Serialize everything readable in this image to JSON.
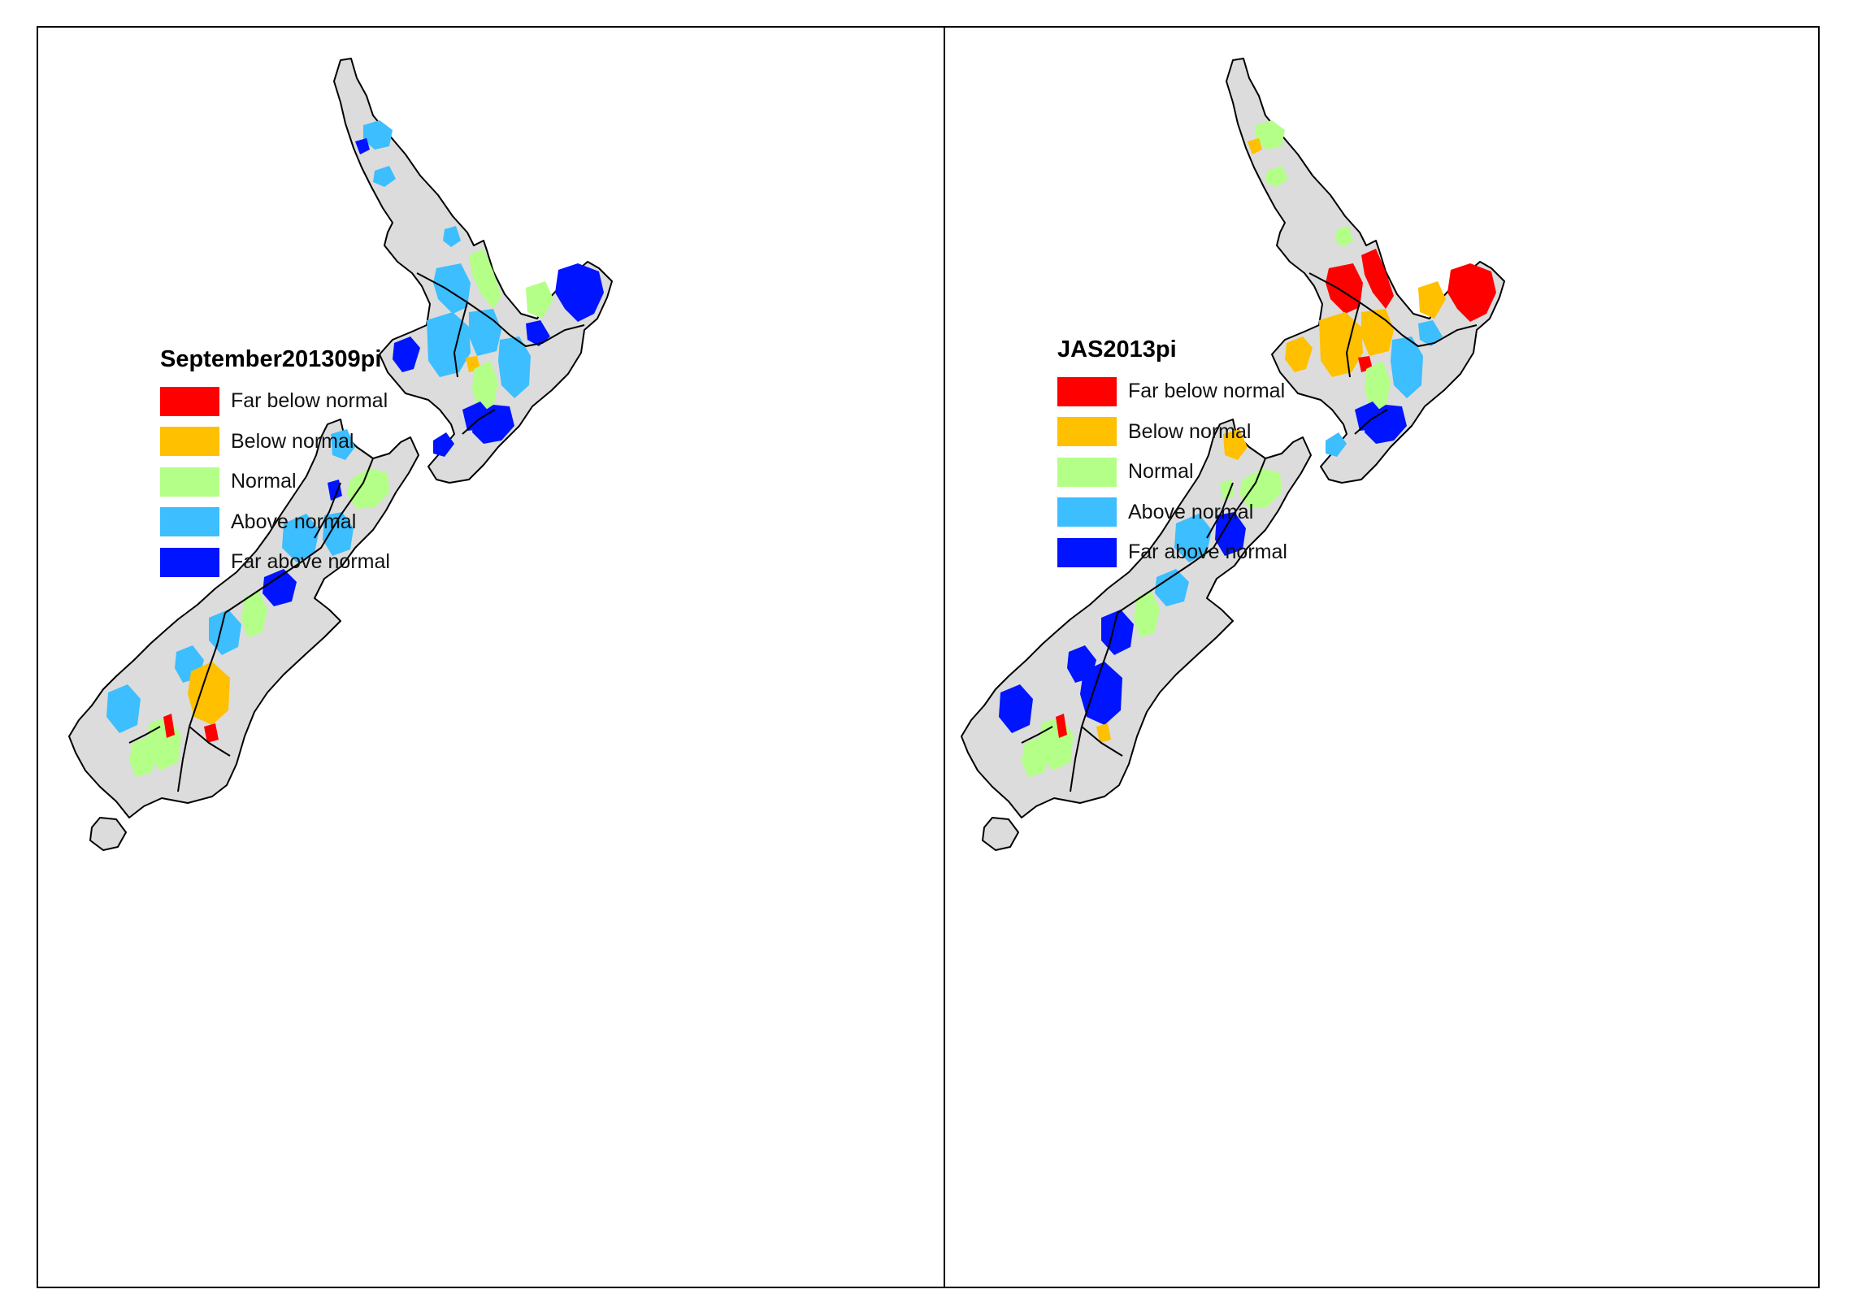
{
  "colors": {
    "land": "#dcdcdc",
    "outline": "#000000",
    "far_below": "#ff0000",
    "below": "#ffc000",
    "normal": "#b4ff87",
    "above": "#3cbeff",
    "far_above": "#0014ff"
  },
  "legend_items": [
    {
      "key": "far_below",
      "label": "Far below normal"
    },
    {
      "key": "below",
      "label": "Below normal"
    },
    {
      "key": "normal",
      "label": "Normal"
    },
    {
      "key": "above",
      "label": "Above normal"
    },
    {
      "key": "far_above",
      "label": "Far above normal"
    }
  ],
  "maps": [
    {
      "id": "left",
      "legend_title": "September201309pi",
      "regions": [
        {
          "name": "northland-west",
          "cls": "above"
        },
        {
          "name": "northland-east",
          "cls": "far_above"
        },
        {
          "name": "auckland",
          "cls": "above"
        },
        {
          "name": "hauraki",
          "cls": "normal"
        },
        {
          "name": "waikato-north",
          "cls": "above"
        },
        {
          "name": "bay-of-plenty",
          "cls": "normal"
        },
        {
          "name": "east-cape",
          "cls": "far_above"
        },
        {
          "name": "gisborne-coast",
          "cls": "far_above"
        },
        {
          "name": "taranaki",
          "cls": "far_above"
        },
        {
          "name": "king-country",
          "cls": "above"
        },
        {
          "name": "taupo",
          "cls": "above"
        },
        {
          "name": "taupo-south",
          "cls": "below"
        },
        {
          "name": "ruapehu",
          "cls": "normal"
        },
        {
          "name": "hawkes-bay",
          "cls": "above"
        },
        {
          "name": "manawatu",
          "cls": "far_above"
        },
        {
          "name": "wairarapa",
          "cls": "far_above"
        },
        {
          "name": "kapiti",
          "cls": "far_above"
        },
        {
          "name": "nelson",
          "cls": "above"
        },
        {
          "name": "marlborough",
          "cls": "normal"
        },
        {
          "name": "buller",
          "cls": "far_above"
        },
        {
          "name": "westland-north",
          "cls": "above"
        },
        {
          "name": "north-canterbury",
          "cls": "above"
        },
        {
          "name": "arthurs-pass",
          "cls": "far_above"
        },
        {
          "name": "canterbury-plains",
          "cls": "normal"
        },
        {
          "name": "mackenzie",
          "cls": "above"
        },
        {
          "name": "mt-cook",
          "cls": "above"
        },
        {
          "name": "waitaki",
          "cls": "normal"
        },
        {
          "name": "fiordland",
          "cls": "above"
        },
        {
          "name": "southland",
          "cls": "normal"
        },
        {
          "name": "central-otago",
          "cls": "below"
        },
        {
          "name": "otago-spot",
          "cls": "far_below"
        },
        {
          "name": "otago-south",
          "cls": "far_below"
        }
      ]
    },
    {
      "id": "right",
      "legend_title": "JAS2013pi",
      "regions": [
        {
          "name": "northland-west",
          "cls": "normal"
        },
        {
          "name": "northland-east",
          "cls": "below"
        },
        {
          "name": "auckland",
          "cls": "normal"
        },
        {
          "name": "hauraki",
          "cls": "far_below"
        },
        {
          "name": "waikato-north",
          "cls": "far_below"
        },
        {
          "name": "bay-of-plenty",
          "cls": "below"
        },
        {
          "name": "east-cape",
          "cls": "far_below"
        },
        {
          "name": "gisborne-coast",
          "cls": "above"
        },
        {
          "name": "taranaki",
          "cls": "below"
        },
        {
          "name": "king-country",
          "cls": "below"
        },
        {
          "name": "taupo",
          "cls": "below"
        },
        {
          "name": "taupo-south",
          "cls": "far_below"
        },
        {
          "name": "ruapehu",
          "cls": "normal"
        },
        {
          "name": "hawkes-bay",
          "cls": "above"
        },
        {
          "name": "manawatu",
          "cls": "far_above"
        },
        {
          "name": "wairarapa",
          "cls": "far_above"
        },
        {
          "name": "kapiti",
          "cls": "above"
        },
        {
          "name": "nelson",
          "cls": "below"
        },
        {
          "name": "marlborough",
          "cls": "normal"
        },
        {
          "name": "buller",
          "cls": "normal"
        },
        {
          "name": "westland-north",
          "cls": "above"
        },
        {
          "name": "north-canterbury",
          "cls": "far_above"
        },
        {
          "name": "arthurs-pass",
          "cls": "above"
        },
        {
          "name": "canterbury-plains",
          "cls": "normal"
        },
        {
          "name": "mackenzie",
          "cls": "far_above"
        },
        {
          "name": "mt-cook",
          "cls": "far_above"
        },
        {
          "name": "waitaki",
          "cls": "normal"
        },
        {
          "name": "fiordland",
          "cls": "far_above"
        },
        {
          "name": "southland",
          "cls": "normal"
        },
        {
          "name": "central-otago",
          "cls": "far_above"
        },
        {
          "name": "otago-spot",
          "cls": "far_below"
        },
        {
          "name": "otago-south",
          "cls": "below"
        }
      ]
    }
  ]
}
